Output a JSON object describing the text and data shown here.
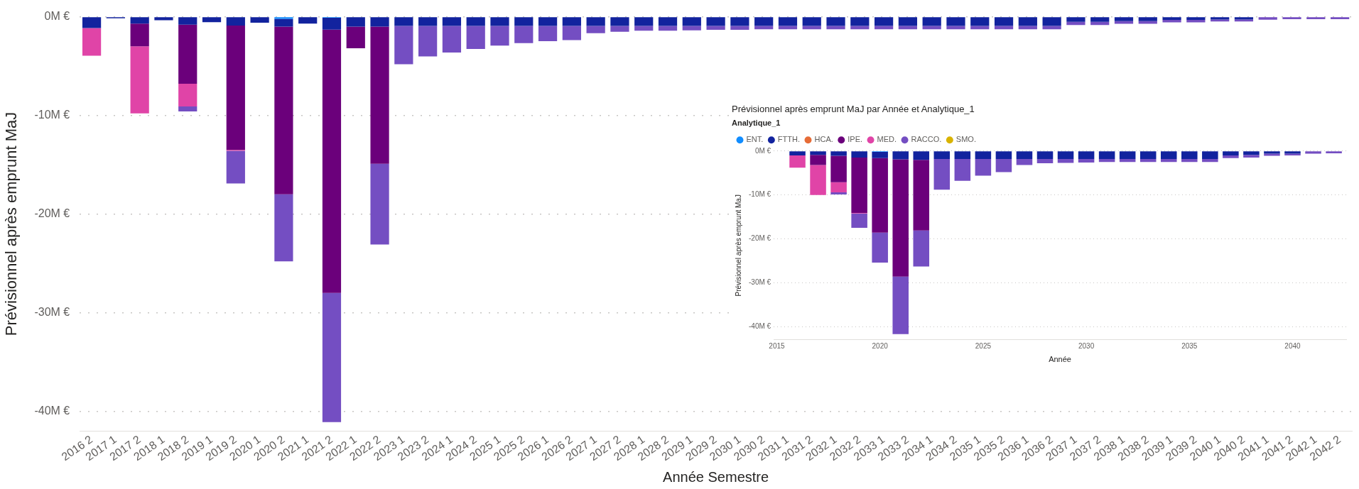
{
  "chart_data": [
    {
      "type": "bar",
      "stacked": true,
      "xlabel": "Année Semestre",
      "ylabel": "Prévisionnel après emprunt MaJ",
      "grid": "y",
      "legend": false,
      "categories": [
        "2016 2",
        "2017 1",
        "2017 2",
        "2018 1",
        "2018 2",
        "2019 1",
        "2019 2",
        "2020 1",
        "2020 2",
        "2021 1",
        "2021 2",
        "2022 1",
        "2022 2",
        "2023 1",
        "2023 2",
        "2024 1",
        "2024 2",
        "2025 1",
        "2025 2",
        "2026 1",
        "2026 2",
        "2027 1",
        "2027 2",
        "2028 1",
        "2028 2",
        "2029 1",
        "2029 2",
        "2030 1",
        "2030 2",
        "2031 1",
        "2031 2",
        "2032 1",
        "2032 2",
        "2033 1",
        "2033 2",
        "2034 1",
        "2034 2",
        "2035 1",
        "2035 2",
        "2036 1",
        "2036 2",
        "2037 1",
        "2037 2",
        "2038 1",
        "2038 2",
        "2039 1",
        "2039 2",
        "2040 1",
        "2040 2",
        "2041 1",
        "2041 2",
        "2042 1",
        "2042 2"
      ],
      "ylim": [
        -42,
        0
      ],
      "yticks": [
        {
          "value": 0,
          "label": "0M €"
        },
        {
          "value": -10,
          "label": "-10M €"
        },
        {
          "value": -20,
          "label": "-20M €"
        },
        {
          "value": -30,
          "label": "-30M €"
        },
        {
          "value": -40,
          "label": "-40M €"
        }
      ],
      "series": [
        {
          "color": "#118dff",
          "values": [
            null,
            null,
            null,
            null,
            null,
            null,
            null,
            null,
            -0.2,
            null,
            -0.1,
            null,
            null,
            null,
            null,
            null,
            null,
            null,
            null,
            null,
            null,
            null,
            null,
            null,
            null,
            null,
            null,
            null,
            null,
            null,
            null,
            null,
            null,
            null,
            null,
            null,
            null,
            null,
            null,
            null,
            null,
            null,
            null,
            null,
            null,
            null,
            null,
            null,
            null,
            null,
            null,
            null,
            null
          ]
        },
        {
          "color": "#12239e",
          "values": [
            -1.15,
            -0.15,
            -0.7,
            -0.35,
            -0.8,
            -0.55,
            -0.9,
            -0.6,
            -0.8,
            -0.7,
            -1.2,
            -1.0,
            -1.0,
            -0.92,
            -0.92,
            -0.92,
            -0.92,
            -0.92,
            -0.92,
            -0.92,
            -0.92,
            -0.92,
            -0.92,
            -0.92,
            -0.92,
            -0.92,
            -0.92,
            -0.92,
            -0.92,
            -0.92,
            -0.92,
            -0.92,
            -0.92,
            -0.92,
            -0.92,
            -0.92,
            -0.92,
            -0.92,
            -0.92,
            -0.92,
            -0.92,
            -0.52,
            -0.52,
            -0.44,
            -0.44,
            -0.32,
            -0.32,
            -0.28,
            -0.28,
            null,
            null,
            null,
            null
          ]
        },
        {
          "color": "#6b007b",
          "values": [
            null,
            null,
            -2.3,
            null,
            -6.0,
            null,
            -12.6,
            null,
            -17.0,
            null,
            -26.7,
            -2.2,
            -13.9,
            null,
            null,
            null,
            null,
            null,
            null,
            null,
            null,
            null,
            null,
            null,
            null,
            null,
            null,
            null,
            null,
            null,
            null,
            null,
            null,
            null,
            null,
            null,
            null,
            null,
            null,
            null,
            null,
            null,
            null,
            null,
            null,
            null,
            null,
            null,
            null,
            null,
            null,
            null,
            null
          ]
        },
        {
          "color": "#e044a7",
          "values": [
            -2.8,
            null,
            -6.8,
            null,
            -2.3,
            null,
            -0.1,
            null,
            null,
            null,
            null,
            null,
            null,
            null,
            null,
            null,
            null,
            null,
            null,
            null,
            null,
            null,
            null,
            null,
            null,
            null,
            null,
            null,
            null,
            null,
            null,
            null,
            null,
            null,
            null,
            null,
            null,
            null,
            null,
            null,
            null,
            null,
            null,
            null,
            null,
            null,
            null,
            null,
            null,
            null,
            null,
            null,
            null
          ]
        },
        {
          "color": "#744ec2",
          "values": [
            null,
            null,
            null,
            null,
            -0.5,
            null,
            -3.3,
            null,
            -6.8,
            null,
            -13.1,
            null,
            -8.2,
            -3.9,
            -3.1,
            -2.7,
            -2.35,
            -2.0,
            -1.75,
            -1.55,
            -1.45,
            -0.75,
            -0.6,
            -0.5,
            -0.5,
            -0.45,
            -0.4,
            -0.4,
            -0.35,
            -0.35,
            -0.35,
            -0.35,
            -0.35,
            -0.35,
            -0.35,
            -0.35,
            -0.35,
            -0.35,
            -0.35,
            -0.35,
            -0.35,
            -0.32,
            -0.32,
            -0.28,
            -0.28,
            -0.24,
            -0.24,
            -0.2,
            -0.2,
            -0.3,
            -0.25,
            -0.25,
            -0.25
          ]
        }
      ]
    },
    {
      "type": "bar",
      "stacked": true,
      "title": "Prévisionnel après emprunt MaJ par Année et Analytique_1",
      "xlabel": "Année",
      "ylabel": "Prévisionnel après emprunt MaJ",
      "legend_title": "Analytique_1",
      "legend": "top left",
      "grid": "y",
      "x": [
        2016,
        2017,
        2018,
        2019,
        2020,
        2021,
        2022,
        2023,
        2024,
        2025,
        2026,
        2027,
        2028,
        2029,
        2030,
        2031,
        2032,
        2033,
        2034,
        2035,
        2036,
        2037,
        2038,
        2039,
        2040,
        2041,
        2042
      ],
      "xlim": [
        2014.85,
        2042.6
      ],
      "xticks": [
        2015,
        2020,
        2025,
        2030,
        2035,
        2040
      ],
      "ylim": [
        -43,
        0
      ],
      "yticks": [
        {
          "value": 0,
          "label": "0M €"
        },
        {
          "value": -10,
          "label": "-10M €"
        },
        {
          "value": -20,
          "label": "-20M €"
        },
        {
          "value": -30,
          "label": "-30M €"
        },
        {
          "value": -40,
          "label": "-40M €"
        }
      ],
      "series": [
        {
          "name": "ENT.",
          "color": "#118dff",
          "values": [
            null,
            null,
            null,
            null,
            -0.2,
            null,
            null,
            null,
            null,
            null,
            null,
            null,
            null,
            null,
            null,
            null,
            null,
            null,
            null,
            null,
            null,
            null,
            null,
            null,
            null,
            null,
            null
          ]
        },
        {
          "name": "FTTH.",
          "color": "#12239e",
          "values": [
            -1.0,
            -0.9,
            -1.1,
            -1.5,
            -1.4,
            -1.9,
            -2.0,
            -1.8,
            -1.8,
            -1.8,
            -1.8,
            -1.8,
            -1.8,
            -1.8,
            -1.8,
            -1.8,
            -1.8,
            -1.8,
            -1.8,
            -1.8,
            -1.8,
            -1.0,
            -0.9,
            -0.6,
            -0.6,
            null,
            null
          ]
        },
        {
          "name": "HCA.",
          "color": "#e66c37",
          "values": [
            null,
            null,
            null,
            null,
            null,
            null,
            null,
            null,
            null,
            null,
            null,
            null,
            null,
            null,
            null,
            null,
            null,
            null,
            null,
            null,
            null,
            null,
            null,
            null,
            null,
            null,
            null
          ]
        },
        {
          "name": "IPE.",
          "color": "#6b007b",
          "values": [
            null,
            -2.3,
            -6.0,
            -12.6,
            -17.0,
            -26.7,
            -16.1,
            null,
            null,
            null,
            null,
            null,
            null,
            null,
            null,
            null,
            null,
            null,
            null,
            null,
            null,
            null,
            null,
            null,
            null,
            null,
            null
          ]
        },
        {
          "name": "MED.",
          "color": "#e044a7",
          "values": [
            -2.8,
            -6.8,
            -2.3,
            -0.1,
            null,
            null,
            null,
            null,
            null,
            null,
            null,
            null,
            null,
            null,
            null,
            null,
            null,
            null,
            null,
            null,
            null,
            null,
            null,
            null,
            null,
            null,
            null
          ]
        },
        {
          "name": "RACCO.",
          "color": "#744ec2",
          "values": [
            null,
            null,
            -0.5,
            -3.3,
            -6.8,
            -13.1,
            -8.2,
            -7.0,
            -5.0,
            -3.8,
            -3.0,
            -1.4,
            -1.0,
            -0.9,
            -0.8,
            -0.7,
            -0.7,
            -0.7,
            -0.7,
            -0.7,
            -0.7,
            -0.6,
            -0.6,
            -0.5,
            -0.4,
            -0.6,
            -0.5
          ]
        },
        {
          "name": "SMO.",
          "color": "#d9b300",
          "values": [
            null,
            null,
            null,
            null,
            null,
            null,
            null,
            null,
            null,
            null,
            null,
            null,
            null,
            null,
            null,
            null,
            null,
            null,
            null,
            null,
            null,
            null,
            null,
            null,
            null,
            null,
            null
          ]
        }
      ]
    }
  ]
}
